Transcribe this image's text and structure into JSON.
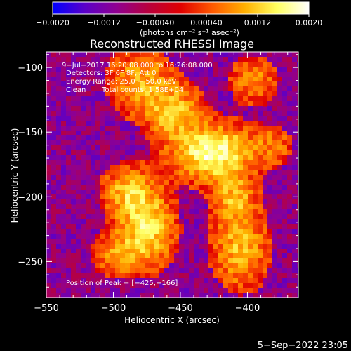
{
  "chart_data": {
    "type": "heatmap",
    "title": "Reconstructed RHESSI Image",
    "xlabel": "Heliocentric X (arcsec)",
    "ylabel": "Heliocentric Y (arcsec)",
    "xlim": [
      -550,
      -362
    ],
    "ylim": [
      -278,
      -88
    ],
    "x_ticks": [
      -550,
      -500,
      -450,
      -400
    ],
    "x_tick_labels": [
      "−550",
      "−500",
      "−450",
      "−400"
    ],
    "y_ticks": [
      -100,
      -150,
      -200,
      -250
    ],
    "y_tick_labels": [
      "−100",
      "−150",
      "−200",
      "−250"
    ],
    "colorbar": {
      "range": [
        -0.002,
        0.002
      ],
      "ticks": [
        -0.002,
        -0.0012,
        -0.0004,
        0.0004,
        0.0012,
        0.002
      ],
      "tick_labels": [
        "−0.0020",
        "−0.0012",
        "−0.00040",
        "0.00040",
        "0.0012",
        "0.0020"
      ],
      "unit_label": "(photons cm⁻² s⁻¹ asec⁻²)",
      "colormap": [
        "#0000ff",
        "#5a00c8",
        "#900090",
        "#b8003c",
        "#e00000",
        "#ff5a00",
        "#ffb000",
        "#ffff60",
        "#ffffff"
      ]
    },
    "annotations": {
      "time_range": "9−Jul−2017 16:20:08.000 to 16:26:08.000",
      "detectors": "Detectors: 3F 6F 8F, Att 0",
      "energy_range": "Energy Range: 25.0 − 50.0 keV",
      "method": "Clean",
      "total_counts": "Total counts: 1.58E+04",
      "peak_position": "Position of Peak = [−425,−166]"
    },
    "peak": [
      -425,
      -166
    ],
    "sources": [
      {
        "x": -425,
        "y": -166,
        "peak": 0.002
      },
      {
        "x": -475,
        "y": -225,
        "peak": 0.0016
      },
      {
        "x": -405,
        "y": -240,
        "peak": 0.0013
      }
    ]
  },
  "footer": {
    "date": "5−Sep−2022 23:05"
  }
}
